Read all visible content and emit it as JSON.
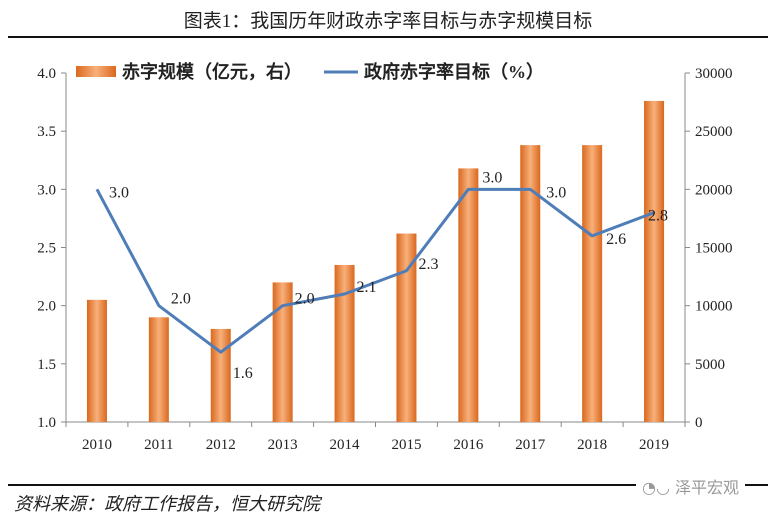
{
  "title": "图表1：我国历年财政赤字率目标与赤字规模目标",
  "source": "资料来源：政府工作报告，恒大研究院",
  "watermark": "泽平宏观",
  "chart_data": {
    "type": "bar+line",
    "categories": [
      "2010",
      "2011",
      "2012",
      "2013",
      "2014",
      "2015",
      "2016",
      "2017",
      "2018",
      "2019"
    ],
    "series": [
      {
        "name": "赤字规模（亿元，右）",
        "type": "bar",
        "axis": "right",
        "color": "#E8823A",
        "values": [
          10500,
          9000,
          8000,
          12000,
          13500,
          16200,
          21800,
          23800,
          23800,
          27600
        ]
      },
      {
        "name": "政府赤字率目标（%）",
        "type": "line",
        "axis": "left",
        "color": "#4F7DB8",
        "values": [
          3.0,
          2.0,
          1.6,
          2.0,
          2.1,
          2.3,
          3.0,
          3.0,
          2.6,
          2.8
        ],
        "labels": [
          "3.0",
          "2.0",
          "1.6",
          "2.0",
          "2.1",
          "2.3",
          "3.0",
          "3.0",
          "2.6",
          "2.8"
        ]
      }
    ],
    "left_axis": {
      "ylim": [
        1.0,
        4.0
      ],
      "ticks": [
        "1.0",
        "1.5",
        "2.0",
        "2.5",
        "3.0",
        "3.5",
        "4.0"
      ]
    },
    "right_axis": {
      "ylim": [
        0,
        30000
      ],
      "ticks": [
        "0",
        "5000",
        "10000",
        "15000",
        "20000",
        "25000",
        "30000"
      ]
    },
    "legend": "top",
    "grid": false
  }
}
